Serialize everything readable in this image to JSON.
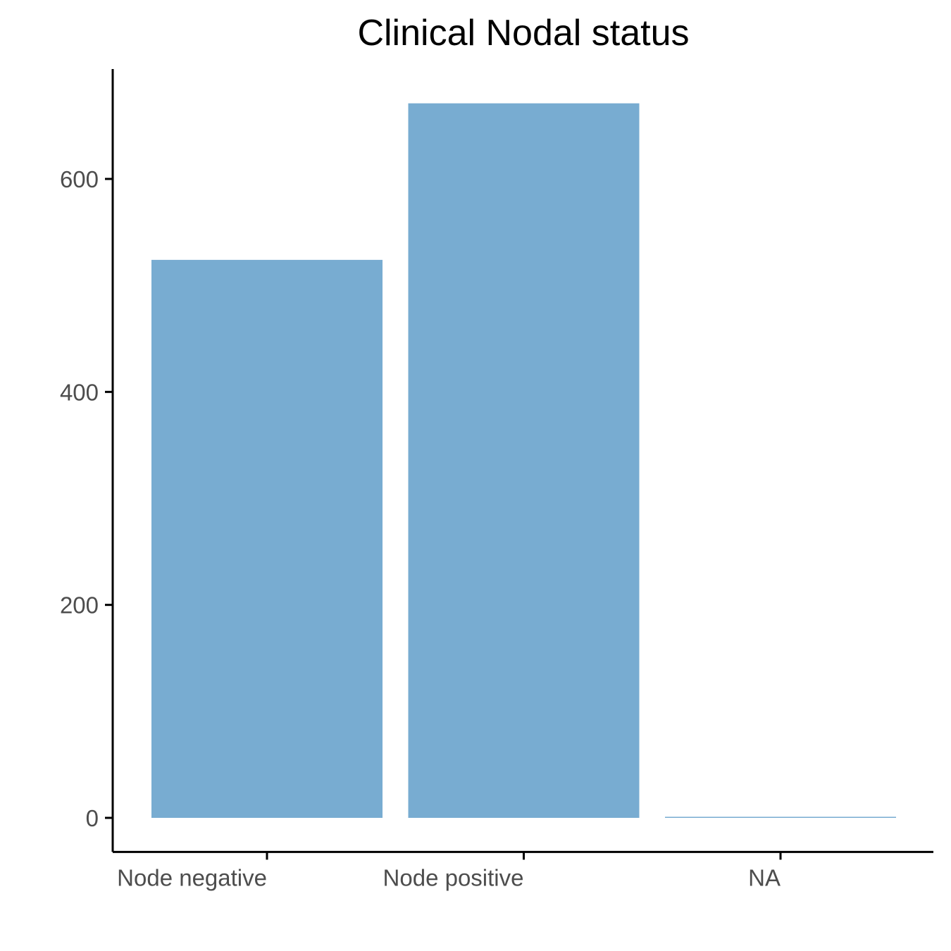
{
  "chart_data": {
    "type": "bar",
    "title": "Clinical Nodal status",
    "xlabel": "",
    "ylabel": "",
    "categories": [
      "Node negative",
      "Node positive",
      "NA"
    ],
    "values": [
      524,
      671,
      1
    ],
    "ylim": [
      -32,
      700
    ],
    "yticks": [
      0,
      200,
      400,
      600
    ],
    "ytick_labels": [
      "0",
      "200",
      "400",
      "600"
    ],
    "grid": false,
    "legend": "none",
    "bar_color": "#78acd1"
  }
}
